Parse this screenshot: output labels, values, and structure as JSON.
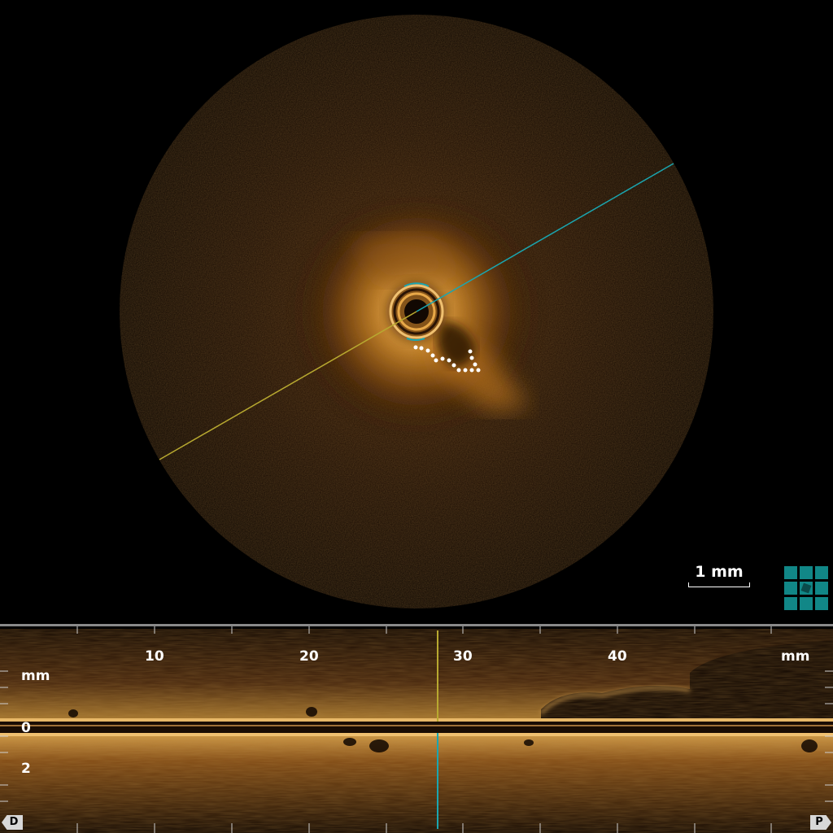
{
  "scale_bar": {
    "label": "1 mm"
  },
  "longitudinal": {
    "unit_x": "mm",
    "unit_y": "mm",
    "x_ticks": [
      "10",
      "20",
      "30",
      "40"
    ],
    "y_ticks": [
      "0",
      "2"
    ],
    "left_end": "D",
    "right_end": "P"
  },
  "colors": {
    "tissue": "#c8841c",
    "cut_line_cyan": "#1aa6b0",
    "cut_line_yellow": "#b8a930",
    "grid_teal": "#118787"
  },
  "icons": {
    "view_layout": "grid-3x3-icon"
  }
}
